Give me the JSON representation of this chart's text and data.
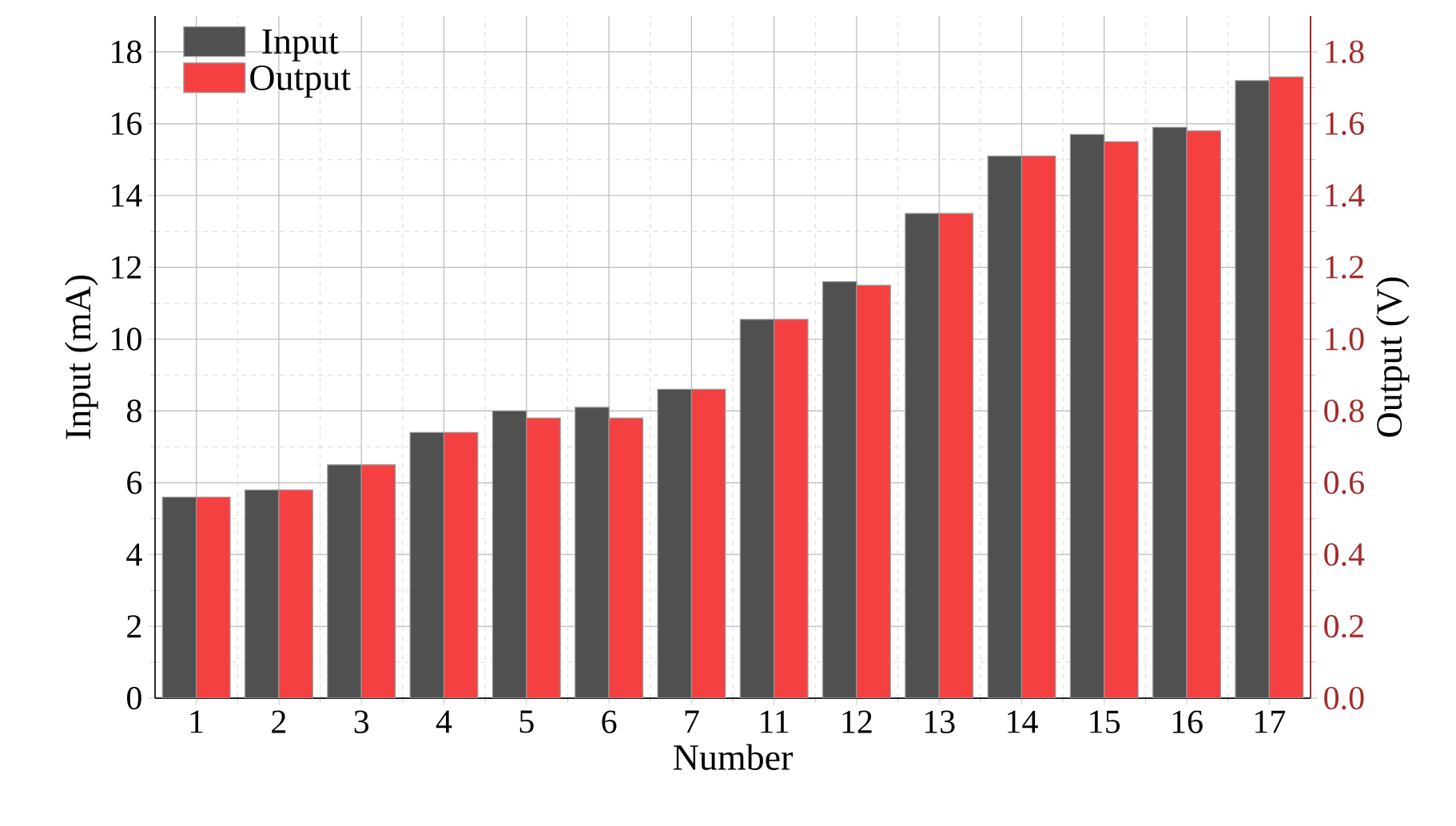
{
  "chart_data": {
    "type": "bar",
    "xlabel": "Number",
    "ylabel": "Input (mA)",
    "y2label": "Output (V)",
    "categories": [
      "1",
      "2",
      "3",
      "4",
      "5",
      "6",
      "7",
      "11",
      "12",
      "13",
      "14",
      "15",
      "16",
      "17"
    ],
    "series": [
      {
        "name": "Input",
        "color": "#505050",
        "values": [
          5.6,
          5.8,
          6.5,
          7.4,
          8.0,
          8.1,
          8.6,
          10.55,
          11.6,
          13.5,
          15.1,
          15.7,
          15.9,
          17.2
        ]
      },
      {
        "name": "Output",
        "color": "#f44040",
        "axis": "y2",
        "values": [
          0.56,
          0.58,
          0.65,
          0.74,
          0.78,
          0.78,
          0.86,
          1.055,
          1.15,
          1.35,
          1.51,
          1.55,
          1.58,
          1.73
        ]
      }
    ],
    "ylim": [
      0,
      19
    ],
    "yticks": [
      0,
      2,
      4,
      6,
      8,
      10,
      12,
      14,
      16,
      18
    ],
    "y2lim": [
      0,
      1.9
    ],
    "y2ticks": [
      {
        "value": 0,
        "label": "0.0"
      },
      {
        "value": 0.2,
        "label": "0.2"
      },
      {
        "value": 0.4,
        "label": "0.4"
      },
      {
        "value": 0.6,
        "label": "0.6"
      },
      {
        "value": 0.8,
        "label": "0.8"
      },
      {
        "value": 1.0,
        "label": "1.0"
      },
      {
        "value": 1.2,
        "label": "1.2"
      },
      {
        "value": 1.4,
        "label": "1.4"
      },
      {
        "value": 1.6,
        "label": "1.6"
      },
      {
        "value": 1.8,
        "label": "1.8"
      }
    ],
    "grid": true,
    "legend": "top left"
  }
}
